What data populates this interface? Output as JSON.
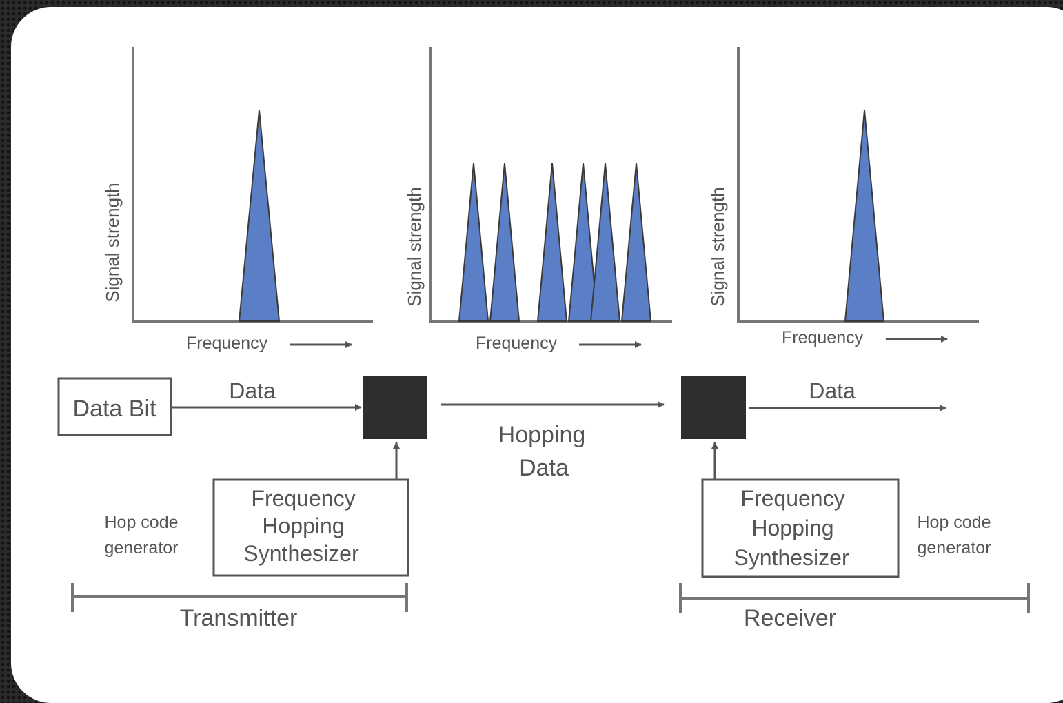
{
  "colors": {
    "peak_fill": "#5b7fc6",
    "peak_edge": "#3a3a3a",
    "axis": "#777777",
    "block": "#2e2e2e",
    "text": "#555555"
  },
  "graphs": {
    "transmitter": {
      "ylabel": "Signal strength",
      "xlabel": "Frequency"
    },
    "hopping": {
      "ylabel": "Signal strength",
      "xlabel": "Frequency"
    },
    "receiver": {
      "ylabel": "Signal strength",
      "xlabel": "Frequency"
    }
  },
  "transmitter": {
    "data_bit_label": "Data Bit",
    "data_label": "Data",
    "synth_lines": [
      "Frequency",
      "Hopping",
      "Synthesizer"
    ],
    "hop_code_lines": [
      "Hop code",
      "generator"
    ],
    "section_label": "Transmitter"
  },
  "channel": {
    "label_lines": [
      "Hopping",
      "Data"
    ]
  },
  "receiver": {
    "data_label": "Data",
    "synth_lines": [
      "Frequency",
      "Hopping",
      "Synthesizer"
    ],
    "hop_code_lines": [
      "Hop code",
      "generator"
    ],
    "section_label": "Receiver"
  }
}
